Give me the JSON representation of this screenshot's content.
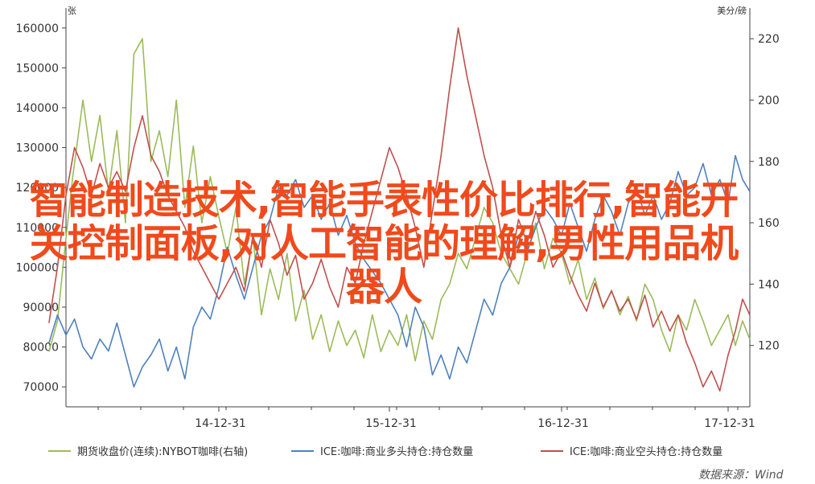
{
  "overlay_title": "智能制造技术,智能手表性价比排行,智能开关控制面板,对人工智能的理解,男性用品机器人",
  "source": "数据来源：Wind",
  "colors": {
    "futures": "#9bbb59",
    "long": "#4f81bd",
    "short": "#c0504d",
    "overlay": "#f04a1c",
    "axis": "#404040"
  },
  "chart_data": {
    "type": "line",
    "left_axis": {
      "unit": "张",
      "range": [
        65000,
        165000
      ],
      "ticks": [
        70000,
        80000,
        90000,
        100000,
        110000,
        120000,
        130000,
        140000,
        150000,
        160000
      ],
      "tick_labels": [
        "70000",
        "80000",
        "90000",
        "100000",
        "110000",
        "120000",
        "130000",
        "140000",
        "150000",
        "160000"
      ]
    },
    "right_axis": {
      "unit": "美分/磅",
      "range": [
        100,
        230
      ],
      "ticks": [
        120,
        140,
        160,
        180,
        200,
        220
      ],
      "tick_labels": [
        "120",
        "140",
        "160",
        "180",
        "200",
        "220"
      ]
    },
    "x_axis": {
      "tick_labels": [
        "14-12-31",
        "15-12-31",
        "16-12-31",
        "17-12-31"
      ]
    },
    "series": [
      {
        "name": "期货收盘价(连续):NYBOT咖啡(右轴)",
        "axis": "right",
        "color_key": "futures",
        "x": [
          2014.0,
          2014.05,
          2014.1,
          2014.14,
          2014.2,
          2014.25,
          2014.3,
          2014.35,
          2014.4,
          2014.45,
          2014.5,
          2014.55,
          2014.6,
          2014.65,
          2014.7,
          2014.75,
          2014.8,
          2014.85,
          2014.9,
          2014.95,
          2015.0,
          2015.05,
          2015.1,
          2015.15,
          2015.2,
          2015.25,
          2015.3,
          2015.35,
          2015.4,
          2015.45,
          2015.5,
          2015.55,
          2015.6,
          2015.65,
          2015.7,
          2015.75,
          2015.8,
          2015.85,
          2015.9,
          2015.95,
          2016.0,
          2016.05,
          2016.1,
          2016.15,
          2016.2,
          2016.25,
          2016.3,
          2016.35,
          2016.4,
          2016.45,
          2016.5,
          2016.55,
          2016.6,
          2016.65,
          2016.7,
          2016.75,
          2016.8,
          2016.85,
          2016.9,
          2016.95,
          2017.0,
          2017.05,
          2017.1,
          2017.15,
          2017.2,
          2017.25,
          2017.3,
          2017.35,
          2017.4,
          2017.45,
          2017.5,
          2017.55,
          2017.6,
          2017.65,
          2017.7,
          2017.75,
          2017.8,
          2017.85,
          2017.9,
          2017.95,
          2018.0,
          2018.05,
          2018.1,
          2018.15
        ],
        "values": [
          118,
          128,
          155,
          175,
          200,
          180,
          195,
          170,
          190,
          160,
          215,
          220,
          180,
          190,
          175,
          200,
          165,
          185,
          160,
          175,
          162,
          150,
          165,
          140,
          155,
          130,
          145,
          135,
          150,
          128,
          138,
          122,
          130,
          118,
          128,
          120,
          125,
          116,
          130,
          118,
          125,
          120,
          130,
          115,
          128,
          122,
          135,
          140,
          150,
          145,
          155,
          165,
          160,
          150,
          145,
          140,
          150,
          160,
          145,
          155,
          150,
          140,
          148,
          135,
          142,
          132,
          138,
          130,
          136,
          128,
          140,
          135,
          125,
          118,
          130,
          125,
          135,
          128,
          120,
          125,
          130,
          120,
          128,
          122
        ]
      },
      {
        "name": "ICE:咖啡:商业多头持仓:持仓数量",
        "axis": "left",
        "color_key": "long",
        "x": [
          2014.0,
          2014.05,
          2014.1,
          2014.15,
          2014.2,
          2014.25,
          2014.3,
          2014.35,
          2014.4,
          2014.45,
          2014.5,
          2014.55,
          2014.6,
          2014.65,
          2014.7,
          2014.75,
          2014.8,
          2014.85,
          2014.9,
          2014.95,
          2015.0,
          2015.05,
          2015.1,
          2015.15,
          2015.2,
          2015.25,
          2015.3,
          2015.35,
          2015.4,
          2015.45,
          2015.5,
          2015.55,
          2015.6,
          2015.65,
          2015.7,
          2015.75,
          2015.8,
          2015.85,
          2015.9,
          2015.95,
          2016.0,
          2016.05,
          2016.1,
          2016.15,
          2016.2,
          2016.25,
          2016.3,
          2016.35,
          2016.4,
          2016.45,
          2016.5,
          2016.55,
          2016.6,
          2016.65,
          2016.7,
          2016.75,
          2016.8,
          2016.85,
          2016.9,
          2016.95,
          2017.0,
          2017.05,
          2017.1,
          2017.15,
          2017.2,
          2017.25,
          2017.3,
          2017.35,
          2017.4,
          2017.45,
          2017.5,
          2017.55,
          2017.6,
          2017.65,
          2017.7,
          2017.75,
          2017.8,
          2017.85,
          2017.9,
          2017.95,
          2018.0,
          2018.05,
          2018.1,
          2018.15
        ],
        "values": [
          81000,
          88000,
          83000,
          87000,
          80000,
          77000,
          82000,
          79000,
          86000,
          78000,
          70000,
          75000,
          78000,
          82000,
          74000,
          80000,
          72000,
          85000,
          90000,
          87000,
          95000,
          105000,
          98000,
          92000,
          100000,
          108000,
          112000,
          120000,
          118000,
          122000,
          115000,
          118000,
          112000,
          116000,
          108000,
          113000,
          106000,
          102000,
          99000,
          96000,
          92000,
          88000,
          80000,
          90000,
          85000,
          73000,
          78000,
          72000,
          80000,
          76000,
          84000,
          92000,
          88000,
          96000,
          100000,
          108000,
          104000,
          110000,
          115000,
          112000,
          108000,
          116000,
          110000,
          104000,
          112000,
          118000,
          114000,
          108000,
          116000,
          120000,
          113000,
          118000,
          112000,
          116000,
          124000,
          118000,
          120000,
          126000,
          118000,
          122000,
          116000,
          128000,
          122000,
          119000
        ]
      },
      {
        "name": "ICE:咖啡:商业空头持仓:持仓数量",
        "axis": "left",
        "color_key": "short",
        "x": [
          2014.0,
          2014.05,
          2014.1,
          2014.15,
          2014.2,
          2014.25,
          2014.3,
          2014.35,
          2014.4,
          2014.45,
          2014.5,
          2014.55,
          2014.6,
          2014.65,
          2014.7,
          2014.75,
          2014.8,
          2014.85,
          2014.9,
          2014.95,
          2015.0,
          2015.05,
          2015.1,
          2015.15,
          2015.2,
          2015.25,
          2015.3,
          2015.35,
          2015.4,
          2015.45,
          2015.5,
          2015.55,
          2015.6,
          2015.65,
          2015.7,
          2015.75,
          2015.8,
          2015.85,
          2015.9,
          2015.95,
          2016.0,
          2016.05,
          2016.1,
          2016.15,
          2016.2,
          2016.25,
          2016.3,
          2016.35,
          2016.4,
          2016.45,
          2016.5,
          2016.55,
          2016.6,
          2016.65,
          2016.7,
          2016.75,
          2016.8,
          2016.85,
          2016.9,
          2016.95,
          2017.0,
          2017.05,
          2017.1,
          2017.15,
          2017.2,
          2017.25,
          2017.3,
          2017.35,
          2017.4,
          2017.45,
          2017.5,
          2017.55,
          2017.6,
          2017.65,
          2017.7,
          2017.75,
          2017.8,
          2017.85,
          2017.9,
          2017.95,
          2018.0,
          2018.05,
          2018.1,
          2018.15
        ],
        "values": [
          86000,
          100000,
          118000,
          130000,
          125000,
          118000,
          126000,
          120000,
          124000,
          119000,
          130000,
          138000,
          128000,
          124000,
          118000,
          114000,
          110000,
          104000,
          100000,
          96000,
          92000,
          96000,
          100000,
          94000,
          108000,
          100000,
          112000,
          106000,
          98000,
          103000,
          92000,
          96000,
          102000,
          95000,
          90000,
          100000,
          96000,
          106000,
          114000,
          122000,
          130000,
          125000,
          118000,
          110000,
          100000,
          114000,
          128000,
          145000,
          160000,
          148000,
          138000,
          128000,
          120000,
          108000,
          100000,
          112000,
          106000,
          114000,
          108000,
          100000,
          104000,
          98000,
          93000,
          89000,
          96000,
          90000,
          94000,
          89000,
          92000,
          87000,
          93000,
          85000,
          89000,
          84000,
          88000,
          81000,
          76000,
          70000,
          74000,
          69000,
          78000,
          84000,
          92000,
          88000
        ]
      }
    ]
  }
}
